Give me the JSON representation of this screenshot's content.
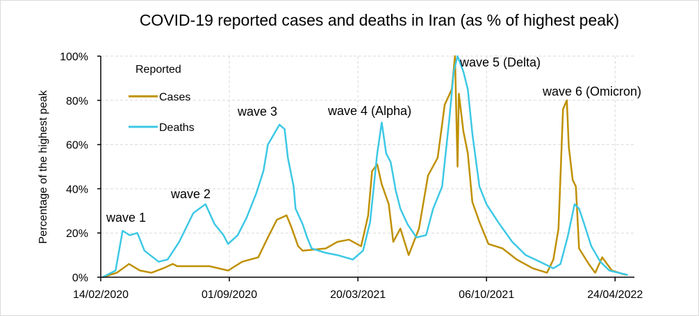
{
  "chart_data": {
    "type": "line",
    "title": "COVID-19 reported cases and deaths in Iran (as % of highest peak)",
    "xlabel": "",
    "ylabel": "Percentage of the highest peak",
    "xlim": [
      "2020-02-14",
      "2022-05-24"
    ],
    "ylim": [
      0,
      100
    ],
    "x_ticks": [
      "14/02/2020",
      "01/09/2020",
      "20/03/2021",
      "06/10/2021",
      "24/04/2022"
    ],
    "x_tick_dates": [
      "2020-02-14",
      "2020-09-01",
      "2021-03-20",
      "2021-10-06",
      "2022-04-24"
    ],
    "y_ticks": [
      "0%",
      "20%",
      "40%",
      "60%",
      "80%",
      "100%"
    ],
    "y_tick_values": [
      0,
      20,
      40,
      60,
      80,
      100
    ],
    "grid": true,
    "legend": {
      "title": "Reported",
      "placement": "top-left"
    },
    "annotations": [
      "wave 1",
      "wave 2",
      "wave 3",
      "wave 4 (Alpha)",
      "wave 5 (Delta)",
      "wave 6 (Omicron)"
    ],
    "series": [
      {
        "name": "Cases",
        "color": "#BF9000",
        "points": [
          [
            "2020-02-17",
            0
          ],
          [
            "2020-03-10",
            2
          ],
          [
            "2020-03-29",
            6
          ],
          [
            "2020-04-15",
            3
          ],
          [
            "2020-05-03",
            2
          ],
          [
            "2020-05-21",
            4
          ],
          [
            "2020-06-05",
            6
          ],
          [
            "2020-06-12",
            5
          ],
          [
            "2020-08-01",
            5
          ],
          [
            "2020-08-30",
            3
          ],
          [
            "2020-09-21",
            7
          ],
          [
            "2020-10-16",
            9
          ],
          [
            "2020-10-31",
            18
          ],
          [
            "2020-11-14",
            26
          ],
          [
            "2020-11-29",
            28
          ],
          [
            "2020-12-06",
            23
          ],
          [
            "2020-12-17",
            14
          ],
          [
            "2020-12-24",
            12
          ],
          [
            "2021-01-29",
            13
          ],
          [
            "2021-02-16",
            16
          ],
          [
            "2021-03-06",
            17
          ],
          [
            "2021-03-25",
            14
          ],
          [
            "2021-04-05",
            28
          ],
          [
            "2021-04-11",
            48
          ],
          [
            "2021-04-19",
            51
          ],
          [
            "2021-04-26",
            42
          ],
          [
            "2021-05-07",
            33
          ],
          [
            "2021-05-14",
            16
          ],
          [
            "2021-05-25",
            22
          ],
          [
            "2021-06-07",
            10
          ],
          [
            "2021-06-23",
            22
          ],
          [
            "2021-07-07",
            46
          ],
          [
            "2021-07-22",
            54
          ],
          [
            "2021-08-02",
            78
          ],
          [
            "2021-08-13",
            85
          ],
          [
            "2021-08-18",
            100
          ],
          [
            "2021-08-22",
            50
          ],
          [
            "2021-08-24",
            83
          ],
          [
            "2021-08-31",
            66
          ],
          [
            "2021-09-07",
            56
          ],
          [
            "2021-09-14",
            34
          ],
          [
            "2021-09-25",
            25
          ],
          [
            "2021-10-09",
            15
          ],
          [
            "2021-10-31",
            13
          ],
          [
            "2021-11-22",
            8
          ],
          [
            "2021-12-17",
            4
          ],
          [
            "2022-01-08",
            2
          ],
          [
            "2022-01-18",
            8
          ],
          [
            "2022-01-26",
            22
          ],
          [
            "2022-02-02",
            76
          ],
          [
            "2022-02-08",
            80
          ],
          [
            "2022-02-11",
            59
          ],
          [
            "2022-02-17",
            44
          ],
          [
            "2022-02-22",
            41
          ],
          [
            "2022-02-27",
            13
          ],
          [
            "2022-03-14",
            6
          ],
          [
            "2022-03-24",
            2
          ],
          [
            "2022-04-04",
            9
          ],
          [
            "2022-04-19",
            3
          ],
          [
            "2022-05-11",
            1
          ]
        ]
      },
      {
        "name": "Deaths",
        "color": "#3CC8E4",
        "points": [
          [
            "2020-02-17",
            0
          ],
          [
            "2020-03-08",
            3
          ],
          [
            "2020-03-19",
            21
          ],
          [
            "2020-03-30",
            19
          ],
          [
            "2020-04-11",
            20
          ],
          [
            "2020-04-22",
            12
          ],
          [
            "2020-05-14",
            7
          ],
          [
            "2020-05-28",
            8
          ],
          [
            "2020-06-15",
            16
          ],
          [
            "2020-07-07",
            29
          ],
          [
            "2020-07-21",
            32
          ],
          [
            "2020-07-26",
            33
          ],
          [
            "2020-08-09",
            24
          ],
          [
            "2020-08-23",
            19
          ],
          [
            "2020-08-30",
            15
          ],
          [
            "2020-09-14",
            19
          ],
          [
            "2020-09-28",
            27
          ],
          [
            "2020-10-13",
            38
          ],
          [
            "2020-10-24",
            48
          ],
          [
            "2020-10-31",
            60
          ],
          [
            "2020-11-10",
            65
          ],
          [
            "2020-11-18",
            69
          ],
          [
            "2020-11-26",
            67
          ],
          [
            "2020-12-01",
            54
          ],
          [
            "2020-12-10",
            41
          ],
          [
            "2020-12-13",
            31
          ],
          [
            "2020-12-24",
            24
          ],
          [
            "2020-12-31",
            18
          ],
          [
            "2021-01-07",
            13
          ],
          [
            "2021-01-29",
            11
          ],
          [
            "2021-02-16",
            10
          ],
          [
            "2021-03-12",
            8
          ],
          [
            "2021-03-28",
            12
          ],
          [
            "2021-04-08",
            25
          ],
          [
            "2021-04-19",
            56
          ],
          [
            "2021-04-26",
            70
          ],
          [
            "2021-05-03",
            56
          ],
          [
            "2021-05-10",
            52
          ],
          [
            "2021-05-18",
            39
          ],
          [
            "2021-05-25",
            31
          ],
          [
            "2021-06-05",
            24
          ],
          [
            "2021-06-19",
            18
          ],
          [
            "2021-07-04",
            19
          ],
          [
            "2021-07-15",
            31
          ],
          [
            "2021-07-29",
            41
          ],
          [
            "2021-08-09",
            71
          ],
          [
            "2021-08-16",
            93
          ],
          [
            "2021-08-22",
            100
          ],
          [
            "2021-08-31",
            93
          ],
          [
            "2021-09-07",
            85
          ],
          [
            "2021-09-14",
            65
          ],
          [
            "2021-09-25",
            41
          ],
          [
            "2021-10-06",
            33
          ],
          [
            "2021-10-24",
            25
          ],
          [
            "2021-11-15",
            16
          ],
          [
            "2021-12-06",
            10
          ],
          [
            "2021-12-28",
            7
          ],
          [
            "2022-01-18",
            4
          ],
          [
            "2022-01-29",
            6
          ],
          [
            "2022-02-09",
            18
          ],
          [
            "2022-02-20",
            33
          ],
          [
            "2022-02-27",
            31
          ],
          [
            "2022-03-07",
            24
          ],
          [
            "2022-03-18",
            14
          ],
          [
            "2022-04-01",
            7
          ],
          [
            "2022-04-15",
            3
          ],
          [
            "2022-05-14",
            1
          ]
        ]
      }
    ]
  }
}
